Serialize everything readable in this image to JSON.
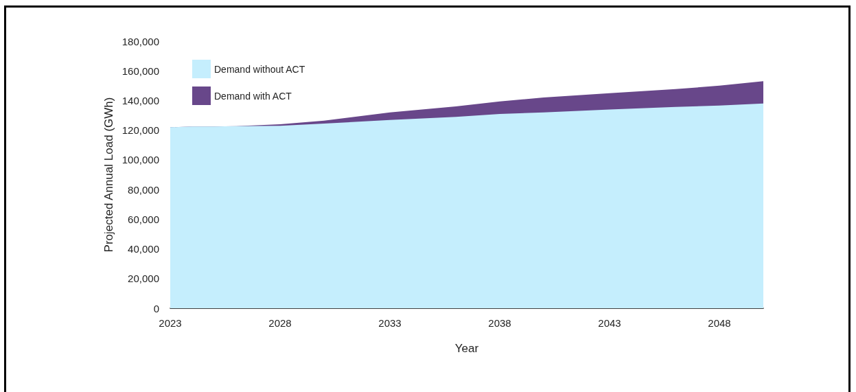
{
  "chart_data": {
    "type": "area",
    "stacked": true,
    "x": [
      2023,
      2024,
      2025,
      2026,
      2028,
      2030,
      2033,
      2036,
      2038,
      2040,
      2043,
      2046,
      2048,
      2050
    ],
    "series": [
      {
        "name": "Demand without ACT",
        "color": "#c5eefd",
        "values": [
          122000,
          122500,
          122500,
          122700,
          123000,
          124500,
          126900,
          129000,
          131000,
          132000,
          134000,
          135700,
          136600,
          138000
        ]
      },
      {
        "name": "Demand with ACT",
        "color": "#68478a",
        "values": [
          0,
          0,
          0,
          0,
          1000,
          1900,
          5100,
          7000,
          8400,
          10000,
          11000,
          12000,
          13400,
          15000
        ]
      }
    ],
    "xlabel": "Year",
    "ylabel": "Projected Annual Load (GWh)",
    "xlim": [
      2023,
      2050
    ],
    "xticks": [
      2023,
      2028,
      2033,
      2038,
      2043,
      2048
    ],
    "ylim": [
      0,
      180000
    ],
    "yticks": [
      0,
      {
        "value": 20000,
        "label": "20,000"
      },
      {
        "value": 40000,
        "label": "40,000"
      },
      {
        "value": 60000,
        "label": "60,000"
      },
      {
        "value": 80000,
        "label": "80,000"
      },
      {
        "value": 100000,
        "label": "100,000"
      },
      {
        "value": 120000,
        "label": "120,000"
      },
      {
        "value": 140000,
        "label": "140,000"
      },
      {
        "value": 160000,
        "label": "160,000"
      },
      {
        "value": 180000,
        "label": "180,000"
      }
    ],
    "grid": false,
    "legend": "top left"
  }
}
